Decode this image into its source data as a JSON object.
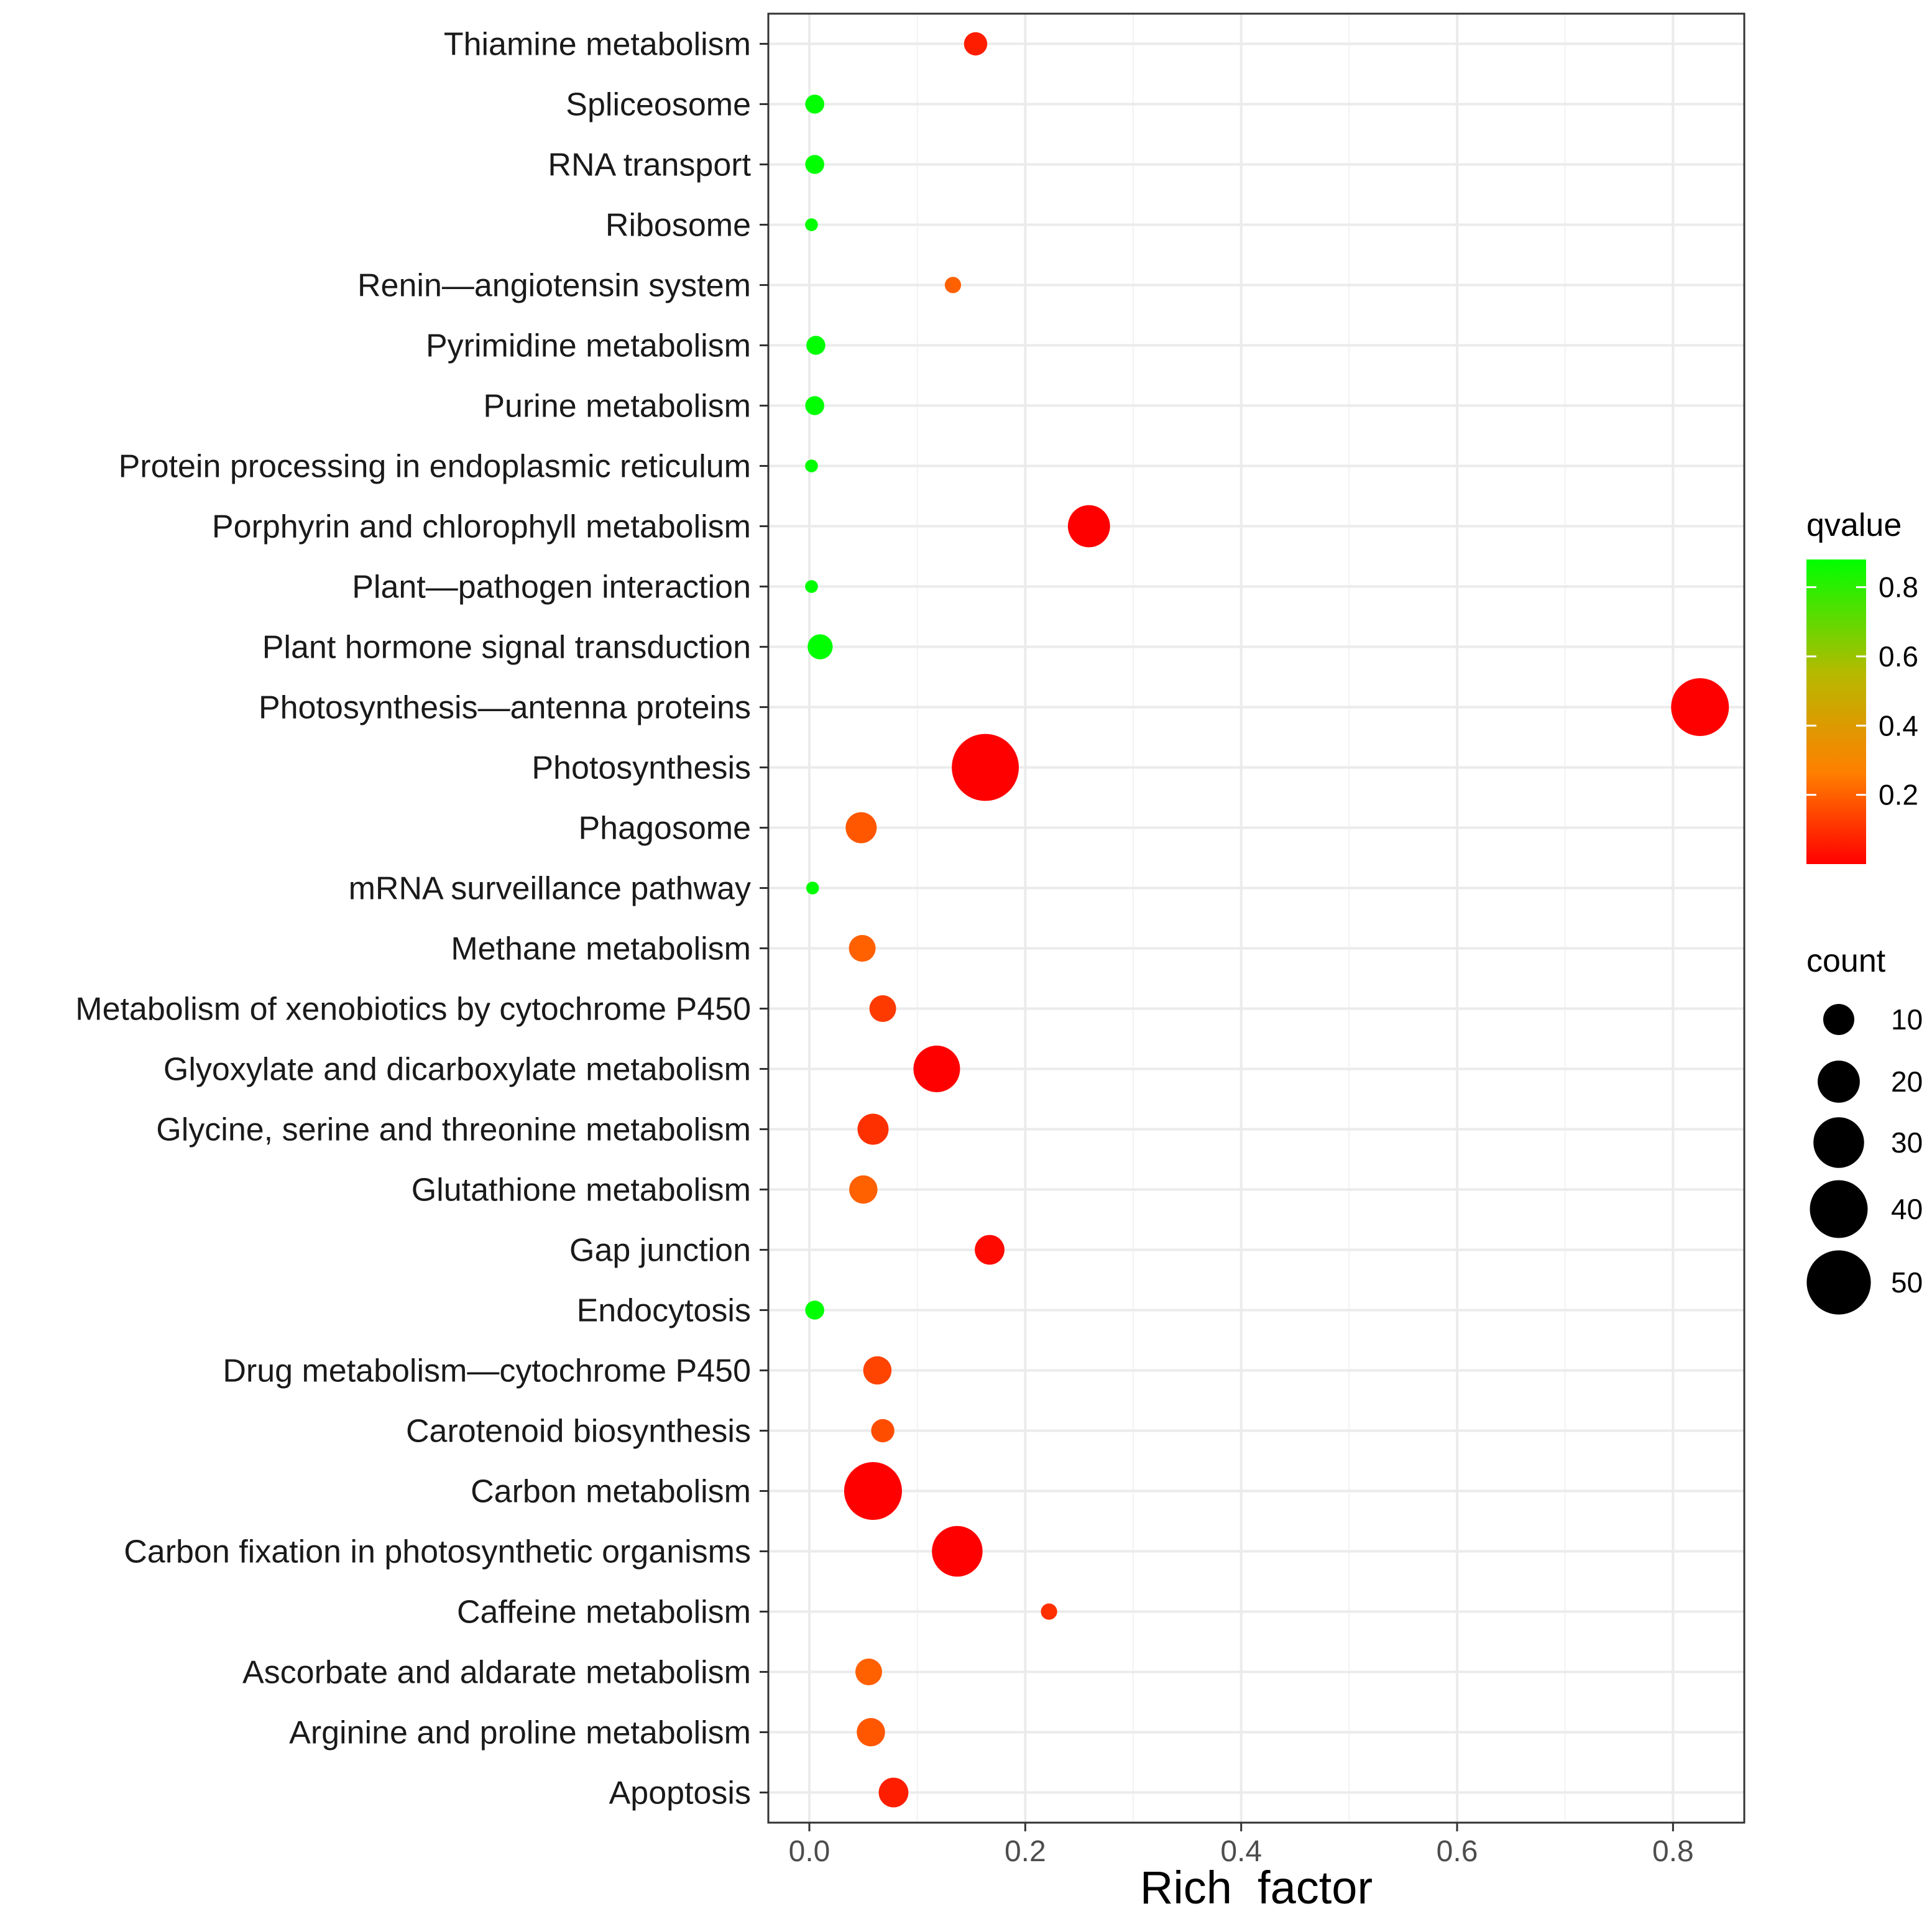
{
  "chart_data": {
    "type": "scatter",
    "title": "",
    "xlabel": "Rich  factor",
    "ylabel": "",
    "xlim": [
      -0.038,
      0.866
    ],
    "xticks": [
      0.0,
      0.2,
      0.4,
      0.6,
      0.8
    ],
    "xtick_labels": [
      "0.0",
      "0.2",
      "0.4",
      "0.6",
      "0.8"
    ],
    "grid": true,
    "points": [
      {
        "category": "Thiamine metabolism",
        "rich_factor": 0.154,
        "qvalue": 0.06,
        "count": 5
      },
      {
        "category": "Spliceosome",
        "rich_factor": 0.005,
        "qvalue": 0.88,
        "count": 3
      },
      {
        "category": "RNA transport",
        "rich_factor": 0.005,
        "qvalue": 0.88,
        "count": 3
      },
      {
        "category": "Ribosome",
        "rich_factor": 0.002,
        "qvalue": 0.88,
        "count": 1
      },
      {
        "category": "Renin—angiotensin system",
        "rich_factor": 0.133,
        "qvalue": 0.2,
        "count": 2
      },
      {
        "category": "Pyrimidine metabolism",
        "rich_factor": 0.006,
        "qvalue": 0.88,
        "count": 3
      },
      {
        "category": "Purine metabolism",
        "rich_factor": 0.005,
        "qvalue": 0.88,
        "count": 3
      },
      {
        "category": "Protein processing in endoplasmic reticulum",
        "rich_factor": 0.002,
        "qvalue": 0.88,
        "count": 1
      },
      {
        "category": "Porphyrin and chlorophyll metabolism",
        "rich_factor": 0.259,
        "qvalue": 0.0,
        "count": 20
      },
      {
        "category": "Plant—pathogen interaction",
        "rich_factor": 0.002,
        "qvalue": 0.88,
        "count": 1
      },
      {
        "category": "Plant hormone signal transduction",
        "rich_factor": 0.01,
        "qvalue": 0.88,
        "count": 6
      },
      {
        "category": "Photosynthesis—antenna proteins",
        "rich_factor": 0.825,
        "qvalue": 0.0,
        "count": 40
      },
      {
        "category": "Photosynthesis",
        "rich_factor": 0.163,
        "qvalue": 0.0,
        "count": 55
      },
      {
        "category": "Phagosome",
        "rich_factor": 0.048,
        "qvalue": 0.18,
        "count": 10
      },
      {
        "category": "mRNA surveillance pathway",
        "rich_factor": 0.003,
        "qvalue": 0.88,
        "count": 1
      },
      {
        "category": "Methane metabolism",
        "rich_factor": 0.049,
        "qvalue": 0.2,
        "count": 7
      },
      {
        "category": "Metabolism of xenobiotics by cytochrome P450",
        "rich_factor": 0.068,
        "qvalue": 0.12,
        "count": 7
      },
      {
        "category": "Glyoxylate and dicarboxylate metabolism",
        "rich_factor": 0.118,
        "qvalue": 0.0,
        "count": 25
      },
      {
        "category": "Glycine, serine and threonine metabolism",
        "rich_factor": 0.059,
        "qvalue": 0.1,
        "count": 10
      },
      {
        "category": "Glutathione metabolism",
        "rich_factor": 0.05,
        "qvalue": 0.2,
        "count": 8
      },
      {
        "category": "Gap junction",
        "rich_factor": 0.167,
        "qvalue": 0.02,
        "count": 9
      },
      {
        "category": "Endocytosis",
        "rich_factor": 0.005,
        "qvalue": 0.88,
        "count": 3
      },
      {
        "category": "Drug metabolism—cytochrome P450",
        "rich_factor": 0.063,
        "qvalue": 0.14,
        "count": 8
      },
      {
        "category": "Carotenoid biosynthesis",
        "rich_factor": 0.068,
        "qvalue": 0.16,
        "count": 5
      },
      {
        "category": "Carbon metabolism",
        "rich_factor": 0.059,
        "qvalue": 0.0,
        "count": 40
      },
      {
        "category": "Carbon fixation in photosynthetic organisms",
        "rich_factor": 0.137,
        "qvalue": 0.0,
        "count": 30
      },
      {
        "category": "Caffeine metabolism",
        "rich_factor": 0.222,
        "qvalue": 0.1,
        "count": 2
      },
      {
        "category": "Ascorbate and aldarate metabolism",
        "rich_factor": 0.055,
        "qvalue": 0.2,
        "count": 7
      },
      {
        "category": "Arginine and proline metabolism",
        "rich_factor": 0.057,
        "qvalue": 0.18,
        "count": 8
      },
      {
        "category": "Apoptosis",
        "rich_factor": 0.078,
        "qvalue": 0.06,
        "count": 9
      }
    ],
    "legend": {
      "color": {
        "title": "qvalue",
        "range": [
          0.0,
          0.88
        ],
        "ticks": [
          0.8,
          0.6,
          0.4,
          0.2
        ],
        "tick_labels": [
          "0.8",
          "0.6",
          "0.4",
          "0.2"
        ],
        "colors": [
          "#ff0000",
          "#ff7f00",
          "#b8b800",
          "#00ff00"
        ]
      },
      "size": {
        "title": "count",
        "values": [
          10,
          20,
          30,
          40,
          50
        ],
        "labels": [
          "10",
          "20",
          "30",
          "40",
          "50"
        ]
      }
    }
  }
}
